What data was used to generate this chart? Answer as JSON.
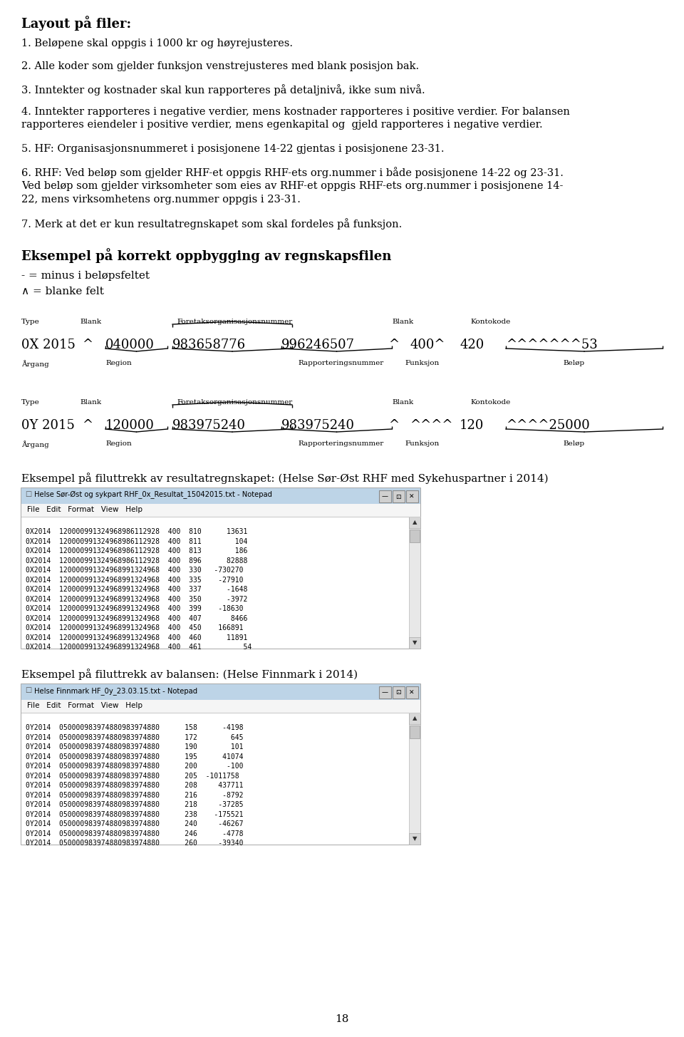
{
  "title_text": "Layout på filer:",
  "body_items": [
    "1. Beløpene skal oppgis i 1000 kr og høyrejusteres.",
    "2. Alle koder som gjelder funksjon venstrejusteres med blank posisjon bak.",
    "3. Inntekter og kostnader skal kun rapporteres på detaljnivå, ikke sum nivå.",
    "4. Inntekter rapporteres i negative verdier, mens kostnader rapporteres i positive verdier. For balansen\nrapporteres eiendeler i positive verdier, mens egenkapital og  gjeld rapporteres i negative verdier.",
    "5. HF: Organisasjonsnummeret i posisjonene 14-22 gjentas i posisjonene 23-31.",
    "6. RHF: Ved beløp som gjelder RHF-et oppgis RHF-ets org.nummer i både posisjonene 14-22 og 23-31.\nVed beløp som gjelder virksomheter som eies av RHF-et oppgis RHF-ets org.nummer i posisjonene 14-\n22, mens virksomhetens org.nummer oppgis i 23-31.",
    "7. Merk at det er kun resultatregnskapet som skal fordeles på funksjon."
  ],
  "eksempel_title": "Eksempel på korrekt oppbygging av regnskapsfilen",
  "legend_line1": "- = minus i beløpsfeltet",
  "legend_line2": "∧ = blanke felt",
  "eksempel2_title": "Eksempel på filuttrekk av resultatregnskapet: (Helse Sør-Øst RHF med Sykehuspartner i 2014)",
  "notepad1_title": "Helse Sør-Øst og sykpart RHF_0x_Resultat_15042015.txt - Notepad",
  "notepad1_lines": [
    "0X2014  120000991324968986112928  400  810      13631",
    "0X2014  120000991324968986112928  400  811        104",
    "0X2014  120000991324968986112928  400  813        186",
    "0X2014  120000991324968986112928  400  896      82888",
    "0X2014  120000991324968991324968  400  330   -730270",
    "0X2014  120000991324968991324968  400  335    -27910",
    "0X2014  120000991324968991324968  400  337      -1648",
    "0X2014  120000991324968991324968  400  350      -3972",
    "0X2014  120000991324968991324968  400  399    -18630",
    "0X2014  120000991324968991324968  400  407       8466",
    "0X2014  120000991324968991324968  400  450    166891",
    "0X2014  120000991324968991324968  400  460      11891",
    "0X2014  120000991324968991324968  400  461          54"
  ],
  "eksempel3_title": "Eksempel på filuttrekk av balansen: (Helse Finnmark i 2014)",
  "notepad2_title": "Helse Finnmark HF_0y_23.03.15.txt - Notepad",
  "notepad2_lines": [
    "0Y2014  050000983974880983974880      158      -4198",
    "0Y2014  050000983974880983974880      172        645",
    "0Y2014  050000983974880983974880      190        101",
    "0Y2014  050000983974880983974880      195      41074",
    "0Y2014  050000983974880983974880      200       -100",
    "0Y2014  050000983974880983974880      205  -1011758",
    "0Y2014  050000983974880983974880      208     437711",
    "0Y2014  050000983974880983974880      216      -8792",
    "0Y2014  050000983974880983974880      218     -37285",
    "0Y2014  050000983974880983974880      238    -175521",
    "0Y2014  050000983974880983974880      240     -46267",
    "0Y2014  050000983974880983974880      246      -4778",
    "0Y2014  050000983974880983974880      260     -39340"
  ],
  "page_number": "18",
  "bg_color": "#ffffff",
  "text_color": "#000000"
}
